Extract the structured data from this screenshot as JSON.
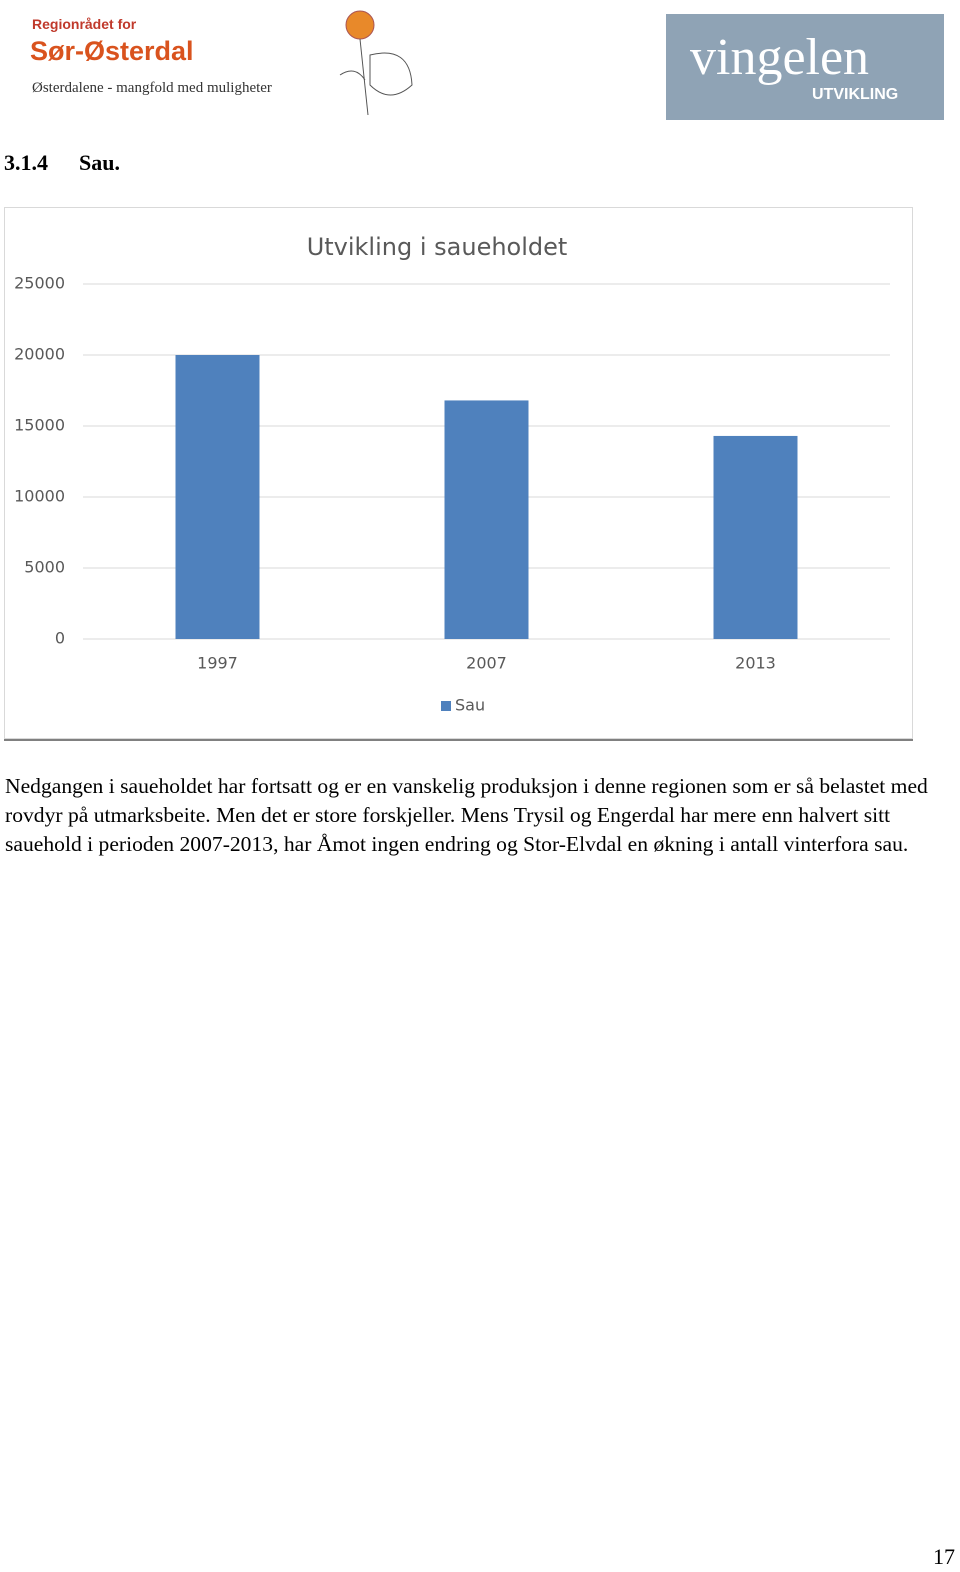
{
  "header": {
    "left_logo": {
      "line1": "Regionrådet for",
      "line2": "Sør-Østerdal",
      "tagline": "Østerdalene - mangfold med muligheter"
    },
    "right_logo": {
      "name": "vingelen",
      "sub": "UTVIKLING"
    }
  },
  "section": {
    "number": "3.1.4",
    "title": "Sau."
  },
  "chart_data": {
    "type": "bar",
    "title": "Utvikling  i saueholdet",
    "categories": [
      "1997",
      "2007",
      "2013"
    ],
    "series": [
      {
        "name": "Sau",
        "color": "#4f81bd",
        "values": [
          20000,
          16800,
          14300
        ]
      }
    ],
    "ylim": [
      0,
      25000
    ],
    "yticks": [
      0,
      5000,
      10000,
      15000,
      20000,
      25000
    ],
    "grid": true,
    "legend": "bottom"
  },
  "paragraph": "Nedgangen i saueholdet har fortsatt og er en vanskelig produksjon i denne regionen som er så belastet med rovdyr på utmarksbeite. Men det er store forskjeller. Mens Trysil og Engerdal har mere enn halvert sitt sauehold i perioden 2007-2013, har Åmot ingen endring og Stor-Elvdal en økning i antall vinterfora sau.",
  "page_number": "17"
}
